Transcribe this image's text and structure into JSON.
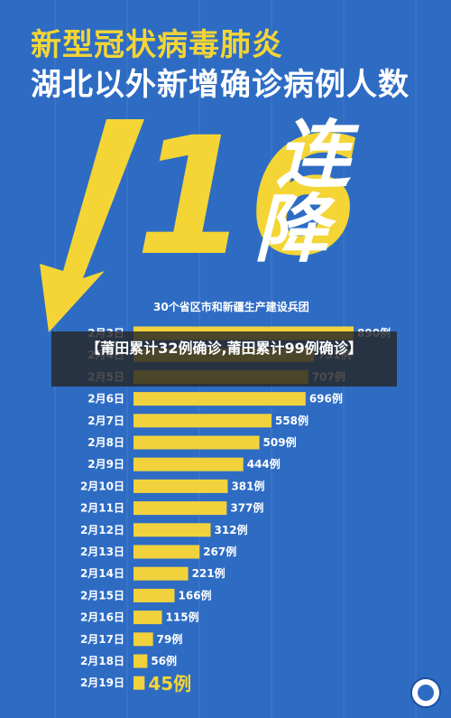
{
  "header": {
    "line1": "新型冠状病毒肺炎",
    "line2": "湖北以外新增确诊病例人数"
  },
  "headline": {
    "number": "16",
    "word1": "连",
    "word2": "降"
  },
  "overlay": {
    "text": "【莆田累计32例确诊,莆田累计99例确诊】"
  },
  "colors": {
    "background": "#2e6cc4",
    "bar": "#f2d23c",
    "title_yellow": "#f4d535",
    "text_white": "#ffffff"
  },
  "chart_data": {
    "type": "bar",
    "orientation": "horizontal",
    "title": "30个省区市和新疆生产建设兵团",
    "categories": [
      "2月3日",
      "2月4日",
      "2月5日",
      "2月6日",
      "2月7日",
      "2月8日",
      "2月9日",
      "2月10日",
      "2月11日",
      "2月12日",
      "2月13日",
      "2月14日",
      "2月15日",
      "2月16日",
      "2月17日",
      "2月18日",
      "2月19日"
    ],
    "values": [
      890,
      731,
      707,
      696,
      558,
      509,
      444,
      381,
      377,
      312,
      267,
      221,
      166,
      115,
      79,
      56,
      45
    ],
    "labels": [
      "890例",
      "731例",
      "707例",
      "696例",
      "558例",
      "509例",
      "444例",
      "381例",
      "377例",
      "312例",
      "267例",
      "221例",
      "166例",
      "115例",
      "79例",
      "56例",
      "45例"
    ],
    "grid": false,
    "legend": "none"
  }
}
